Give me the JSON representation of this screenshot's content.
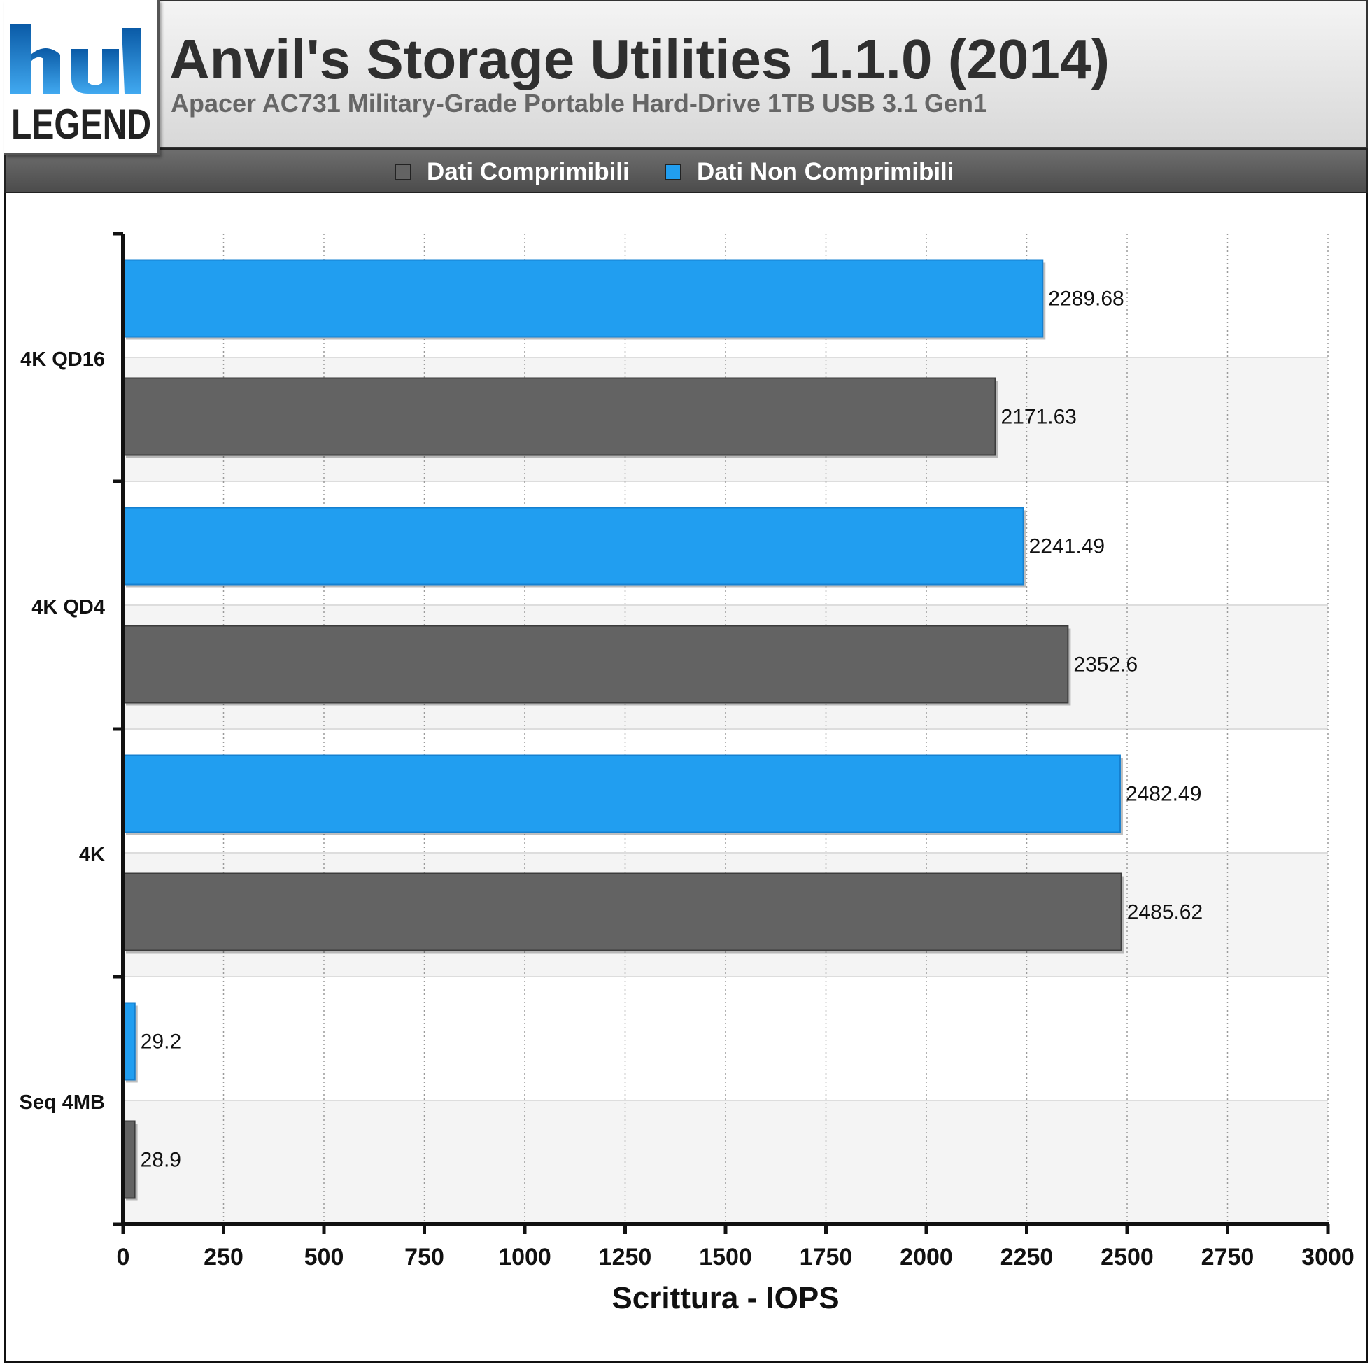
{
  "header": {
    "logo_text_top": "hu",
    "logo_text_bottom": "LEGEND",
    "title": "Anvil's Storage Utilities 1.1.0 (2014)",
    "subtitle": "Apacer AC731 Military-Grade Portable Hard-Drive 1TB USB 3.1 Gen1"
  },
  "legend": {
    "items": [
      {
        "label": "Dati Comprimibili",
        "color": "#636363"
      },
      {
        "label": "Dati Non Comprimibili",
        "color": "#219ef0"
      }
    ]
  },
  "colors": {
    "compressible": "#636363",
    "incompressible": "#219ef0",
    "band_alt": "#f4f4f4"
  },
  "chart_data": {
    "type": "bar",
    "orientation": "horizontal",
    "categories": [
      "4K QD16",
      "4K QD4",
      "4K",
      "Seq 4MB"
    ],
    "series": [
      {
        "name": "Dati Non Comprimibili",
        "values": [
          2289.68,
          2241.49,
          2482.49,
          29.2
        ]
      },
      {
        "name": "Dati Comprimibili",
        "values": [
          2171.63,
          2352.6,
          2485.62,
          28.9
        ]
      }
    ],
    "value_labels": {
      "Dati Non Comprimibili": [
        "2289.68",
        "2241.49",
        "2482.49",
        "29.2"
      ],
      "Dati Comprimibili": [
        "2171.63",
        "2352.6",
        "2485.62",
        "28.9"
      ]
    },
    "xlabel": "Scrittura - IOPS",
    "xlim": [
      0,
      3000
    ],
    "xticks": [
      0,
      250,
      500,
      750,
      1000,
      1250,
      1500,
      1750,
      2000,
      2250,
      2500,
      2750,
      3000
    ],
    "grid": "vertical dotted",
    "legend_position": "top"
  }
}
